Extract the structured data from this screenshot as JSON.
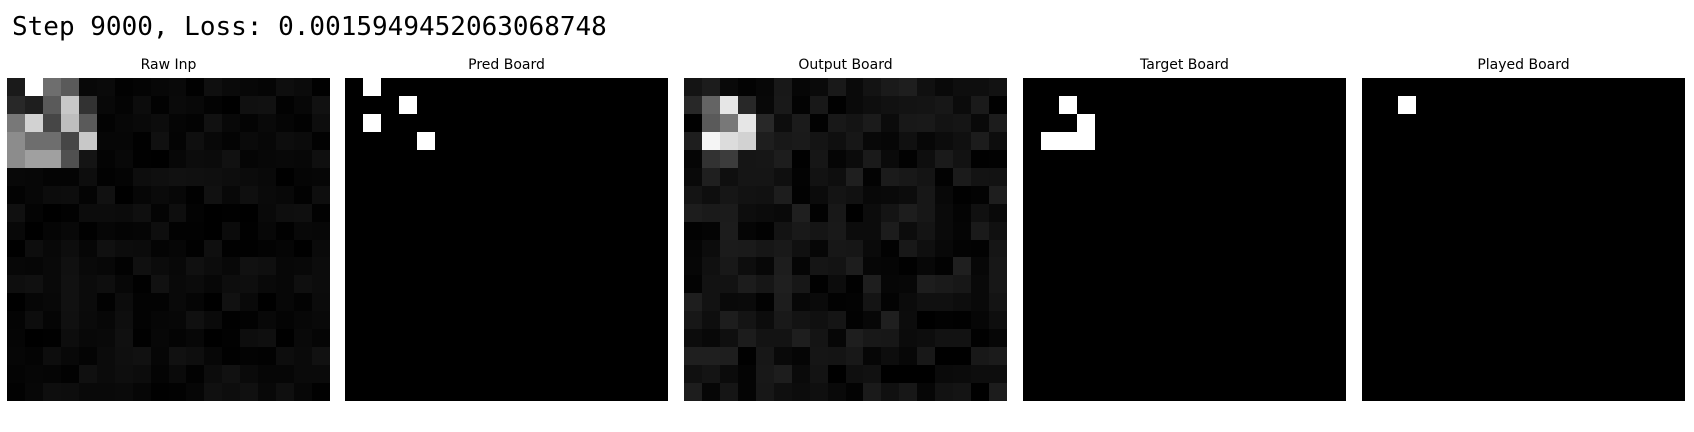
{
  "title": "Step 9000, Loss: 0.0015949452063068748",
  "panels": [
    {
      "title": "Raw Inp"
    },
    {
      "title": "Pred Board"
    },
    {
      "title": "Output Board"
    },
    {
      "title": "Target Board"
    },
    {
      "title": "Played Board"
    }
  ],
  "grid_size": 18,
  "boards": {
    "raw_inp": {
      "cells": [
        [
          0,
          0,
          26
        ],
        [
          0,
          1,
          255
        ],
        [
          0,
          2,
          110
        ],
        [
          0,
          3,
          90
        ],
        [
          1,
          0,
          40
        ],
        [
          1,
          1,
          30
        ],
        [
          1,
          2,
          90
        ],
        [
          1,
          3,
          200
        ],
        [
          1,
          4,
          50
        ],
        [
          2,
          0,
          120
        ],
        [
          2,
          1,
          210
        ],
        [
          2,
          2,
          70
        ],
        [
          2,
          3,
          190
        ],
        [
          2,
          4,
          90
        ],
        [
          3,
          0,
          140
        ],
        [
          3,
          1,
          110
        ],
        [
          3,
          2,
          110
        ],
        [
          3,
          3,
          70
        ],
        [
          3,
          4,
          200
        ],
        [
          4,
          0,
          140
        ],
        [
          4,
          1,
          160
        ],
        [
          4,
          2,
          160
        ],
        [
          4,
          3,
          80
        ],
        [
          4,
          4,
          20
        ]
      ],
      "noise_level": 18
    },
    "pred_board": {
      "cells": [
        [
          0,
          1,
          255
        ],
        [
          1,
          3,
          255
        ],
        [
          2,
          1,
          255
        ],
        [
          3,
          4,
          255
        ]
      ]
    },
    "output_board": {
      "cells": [
        [
          1,
          0,
          40
        ],
        [
          1,
          1,
          100
        ],
        [
          1,
          2,
          230
        ],
        [
          1,
          3,
          40
        ],
        [
          2,
          1,
          90
        ],
        [
          2,
          2,
          120
        ],
        [
          2,
          3,
          230
        ],
        [
          2,
          4,
          40
        ],
        [
          3,
          0,
          30
        ],
        [
          3,
          1,
          245
        ],
        [
          3,
          2,
          220
        ],
        [
          3,
          3,
          210
        ],
        [
          3,
          4,
          30
        ],
        [
          4,
          1,
          50
        ],
        [
          4,
          2,
          60
        ]
      ],
      "noise_level": 32
    },
    "target_board": {
      "cells": [
        [
          1,
          2,
          255
        ],
        [
          2,
          3,
          255
        ],
        [
          3,
          1,
          255
        ],
        [
          3,
          2,
          255
        ],
        [
          3,
          3,
          255
        ]
      ]
    },
    "played_board": {
      "cells": [
        [
          1,
          2,
          255
        ]
      ]
    }
  }
}
